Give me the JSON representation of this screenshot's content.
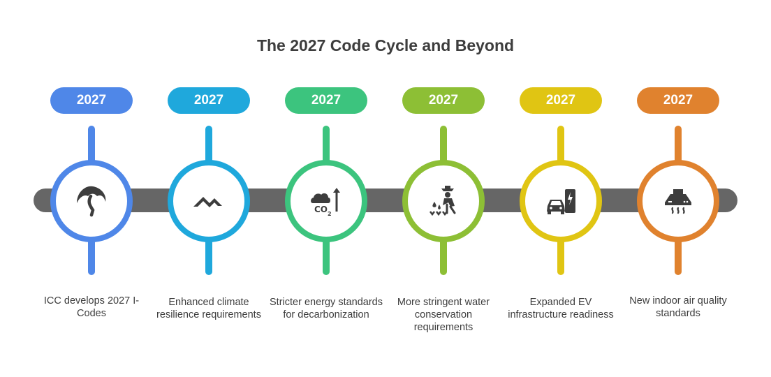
{
  "title": "The 2027 Code Cycle and Beyond",
  "steps": [
    {
      "year": "2027",
      "text": "ICC develops 2027 I-Codes",
      "icon": "umbrella-icon",
      "color": "#4f87e8"
    },
    {
      "year": "2027",
      "text": "Enhanced climate resilience requirements",
      "icon": "mountain-peaks-icon",
      "color": "#1fa8dc"
    },
    {
      "year": "2027",
      "text": "Stricter energy standards for decarbonization",
      "icon": "co2-cloud-icon",
      "color": "#3cc47e"
    },
    {
      "year": "2027",
      "text": "More stringent water conservation requirements",
      "icon": "farmer-watering-icon",
      "color": "#8dbf35"
    },
    {
      "year": "2027",
      "text": "Expanded EV infrastructure readiness",
      "icon": "ev-charger-icon",
      "color": "#e0c513"
    },
    {
      "year": "2027",
      "text": "New indoor air quality standards",
      "icon": "range-hood-icon",
      "color": "#e0822e"
    }
  ]
}
